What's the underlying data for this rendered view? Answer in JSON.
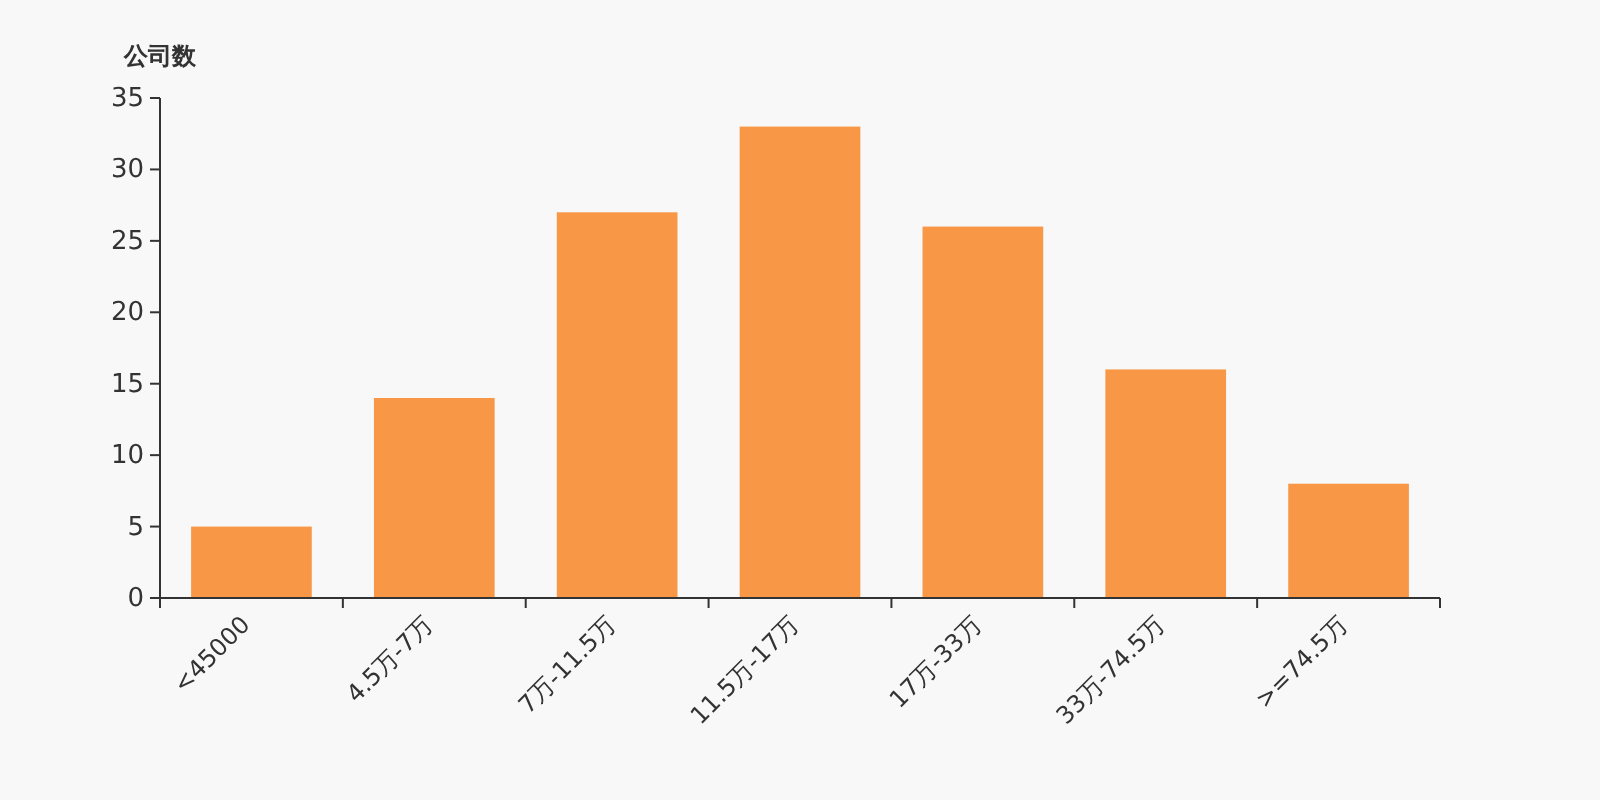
{
  "chart_data": {
    "type": "bar",
    "ylabel": "公司数",
    "categories": [
      "<45000",
      "4.5万-7万",
      "7万-11.5万",
      "11.5万-17万",
      "17万-33万",
      "33万-74.5万",
      ">=74.5万"
    ],
    "values": [
      5,
      14,
      27,
      33,
      26,
      16,
      8
    ],
    "color": "#f89847",
    "ylim": [
      0,
      35
    ],
    "yticks": [
      0,
      5,
      10,
      15,
      20,
      25,
      30,
      35
    ],
    "grid": false
  }
}
